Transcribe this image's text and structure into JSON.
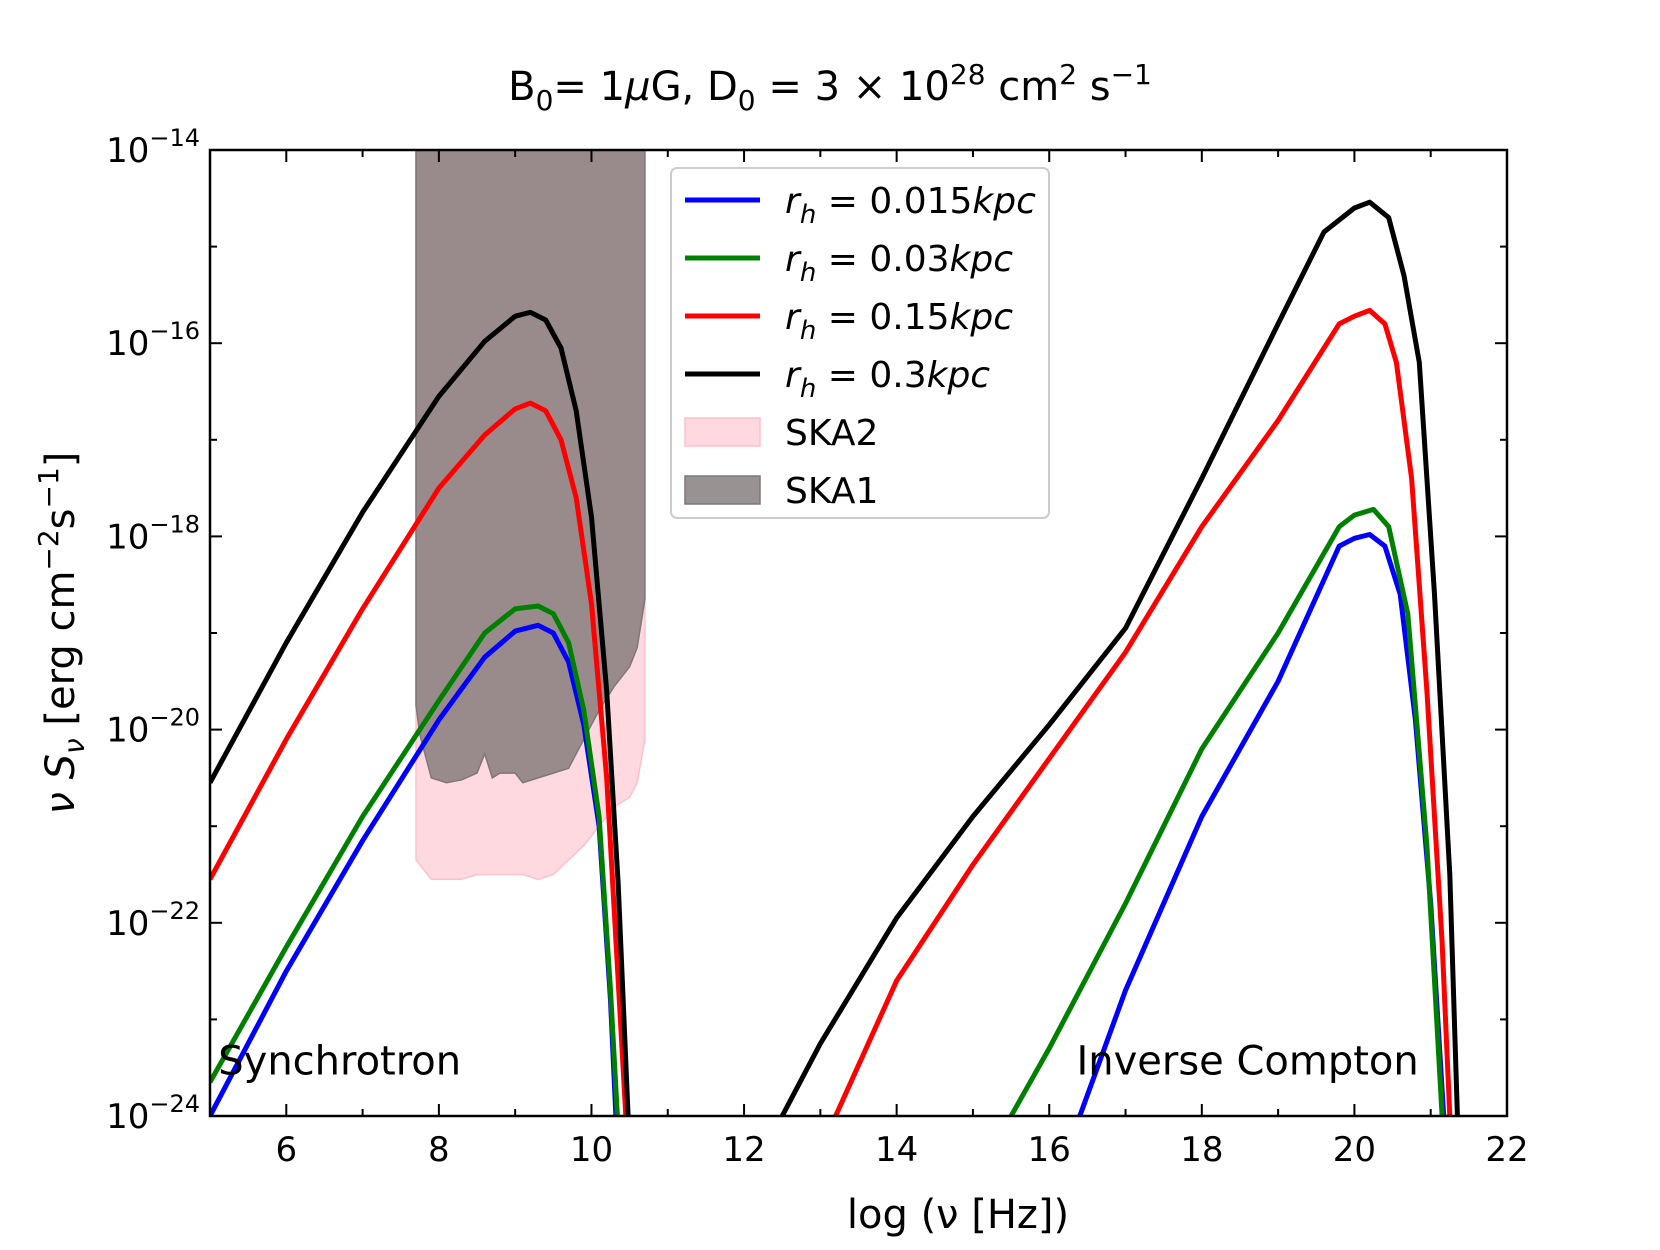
{
  "chart_data": {
    "type": "line",
    "title": "B₀= 1μG, D₀ = 3 × 10²⁸ cm² s⁻¹",
    "title_parts": {
      "b": "B",
      "b_sub": "0",
      "b_val": "= 1",
      "mu": "μ",
      "g": "G, D",
      "d_sub": "0",
      "d_val": " = 3 × 10",
      "exp": "28",
      "cm": " cm",
      "cm_exp": "2",
      "s": " s",
      "s_exp": "−1"
    },
    "xlabel": "log (ν [Hz])",
    "ylabel": "ν Sν [erg cm⁻²s⁻¹]",
    "ylabel_parts": {
      "nu": "ν S",
      "sub": "ν",
      "unit": " [erg cm",
      "exp1": "−2",
      "s": "s",
      "exp2": "−1",
      "close": "]"
    },
    "xlim": [
      5,
      22
    ],
    "ylim": [
      -24,
      -14
    ],
    "y_scale": "log",
    "x_ticks": [
      6,
      8,
      10,
      12,
      14,
      16,
      18,
      20,
      22
    ],
    "y_ticks": [
      {
        "exp": -14,
        "base": "10",
        "label": "−14"
      },
      {
        "exp": -16,
        "base": "10",
        "label": "−16"
      },
      {
        "exp": -18,
        "base": "10",
        "label": "−18"
      },
      {
        "exp": -20,
        "base": "10",
        "label": "−20"
      },
      {
        "exp": -22,
        "base": "10",
        "label": "−22"
      },
      {
        "exp": -24,
        "base": "10",
        "label": "−24"
      }
    ],
    "annotations": [
      {
        "text": "Synchrotron",
        "x": 6.7,
        "y": -23.57
      },
      {
        "text": "Inverse Compton",
        "x": 18.6,
        "y": -23.57
      }
    ],
    "legend_position": "top-center",
    "series": [
      {
        "name": "r_h = 0.015kpc",
        "label_parts": {
          "r": "r",
          "h": "h",
          "rest": " = 0.015",
          "unit": "kpc"
        },
        "color": "#0000ff",
        "segments": [
          [
            [
              5.0,
              -24.0
            ],
            [
              6.0,
              -22.5
            ],
            [
              7.0,
              -21.15
            ],
            [
              8.0,
              -19.9
            ],
            [
              8.6,
              -19.25
            ],
            [
              9.0,
              -18.98
            ],
            [
              9.3,
              -18.92
            ],
            [
              9.5,
              -19.0
            ],
            [
              9.7,
              -19.3
            ],
            [
              9.9,
              -19.95
            ],
            [
              10.1,
              -21.0
            ],
            [
              10.25,
              -22.8
            ],
            [
              10.32,
              -24.0
            ]
          ],
          [
            [
              16.4,
              -24.0
            ],
            [
              17.0,
              -22.7
            ],
            [
              18.0,
              -20.9
            ],
            [
              19.0,
              -19.5
            ],
            [
              19.8,
              -18.1
            ],
            [
              20.0,
              -18.02
            ],
            [
              20.2,
              -17.98
            ],
            [
              20.4,
              -18.1
            ],
            [
              20.6,
              -18.6
            ],
            [
              20.8,
              -19.9
            ],
            [
              21.0,
              -21.8
            ],
            [
              21.17,
              -24.0
            ]
          ]
        ]
      },
      {
        "name": "r_h = 0.03kpc",
        "label_parts": {
          "r": "r",
          "h": "h",
          "rest": " = 0.03",
          "unit": "kpc"
        },
        "color": "#008000",
        "segments": [
          [
            [
              5.0,
              -23.65
            ],
            [
              6.0,
              -22.25
            ],
            [
              7.0,
              -20.9
            ],
            [
              8.0,
              -19.7
            ],
            [
              8.6,
              -19.0
            ],
            [
              9.0,
              -18.75
            ],
            [
              9.3,
              -18.72
            ],
            [
              9.5,
              -18.8
            ],
            [
              9.7,
              -19.1
            ],
            [
              9.9,
              -19.8
            ],
            [
              10.1,
              -20.9
            ],
            [
              10.25,
              -22.7
            ],
            [
              10.34,
              -24.0
            ]
          ],
          [
            [
              15.5,
              -24.0
            ],
            [
              16.0,
              -23.3
            ],
            [
              17.0,
              -21.8
            ],
            [
              18.0,
              -20.2
            ],
            [
              19.0,
              -19.0
            ],
            [
              19.8,
              -17.9
            ],
            [
              20.0,
              -17.78
            ],
            [
              20.25,
              -17.72
            ],
            [
              20.45,
              -17.9
            ],
            [
              20.7,
              -18.8
            ],
            [
              20.95,
              -21.2
            ],
            [
              21.15,
              -24.0
            ]
          ]
        ]
      },
      {
        "name": "r_h = 0.15kpc",
        "label_parts": {
          "r": "r",
          "h": "h",
          "rest": " = 0.15",
          "unit": "kpc"
        },
        "color": "#ff0000",
        "segments": [
          [
            [
              5.0,
              -21.55
            ],
            [
              6.0,
              -20.1
            ],
            [
              7.0,
              -18.75
            ],
            [
              8.0,
              -17.5
            ],
            [
              8.6,
              -16.95
            ],
            [
              9.0,
              -16.68
            ],
            [
              9.2,
              -16.62
            ],
            [
              9.4,
              -16.7
            ],
            [
              9.6,
              -17.0
            ],
            [
              9.8,
              -17.6
            ],
            [
              10.0,
              -18.7
            ],
            [
              10.2,
              -20.5
            ],
            [
              10.35,
              -22.6
            ],
            [
              10.45,
              -24.0
            ]
          ],
          [
            [
              13.2,
              -24.0
            ],
            [
              14.0,
              -22.6
            ],
            [
              15.0,
              -21.4
            ],
            [
              16.0,
              -20.3
            ],
            [
              17.0,
              -19.2
            ],
            [
              18.0,
              -17.9
            ],
            [
              19.0,
              -16.8
            ],
            [
              19.8,
              -15.8
            ],
            [
              20.0,
              -15.72
            ],
            [
              20.2,
              -15.66
            ],
            [
              20.4,
              -15.8
            ],
            [
              20.55,
              -16.2
            ],
            [
              20.75,
              -17.4
            ],
            [
              20.95,
              -19.6
            ],
            [
              21.15,
              -22.2
            ],
            [
              21.25,
              -24.0
            ]
          ]
        ]
      },
      {
        "name": "r_h = 0.3kpc",
        "label_parts": {
          "r": "r",
          "h": "h",
          "rest": " = 0.3",
          "unit": "kpc"
        },
        "color": "#000000",
        "segments": [
          [
            [
              5.0,
              -20.55
            ],
            [
              6.0,
              -19.1
            ],
            [
              7.0,
              -17.75
            ],
            [
              8.0,
              -16.55
            ],
            [
              8.6,
              -15.98
            ],
            [
              9.0,
              -15.72
            ],
            [
              9.2,
              -15.68
            ],
            [
              9.4,
              -15.76
            ],
            [
              9.6,
              -16.05
            ],
            [
              9.8,
              -16.7
            ],
            [
              10.0,
              -17.8
            ],
            [
              10.2,
              -19.6
            ],
            [
              10.35,
              -21.6
            ],
            [
              10.48,
              -24.0
            ]
          ],
          [
            [
              12.5,
              -24.0
            ],
            [
              13.0,
              -23.25
            ],
            [
              14.0,
              -21.95
            ],
            [
              15.0,
              -20.9
            ],
            [
              16.0,
              -19.95
            ],
            [
              17.0,
              -18.95
            ],
            [
              18.0,
              -17.4
            ],
            [
              19.0,
              -15.8
            ],
            [
              19.6,
              -14.85
            ],
            [
              20.0,
              -14.6
            ],
            [
              20.2,
              -14.54
            ],
            [
              20.45,
              -14.7
            ],
            [
              20.65,
              -15.3
            ],
            [
              20.85,
              -16.2
            ],
            [
              21.05,
              -18.6
            ],
            [
              21.25,
              -21.5
            ],
            [
              21.35,
              -24.0
            ]
          ]
        ]
      }
    ],
    "bands": [
      {
        "name": "SKA2",
        "color": "#ffc0cb",
        "alpha": 0.6,
        "x": [
          7.7,
          7.9,
          8.3,
          8.5,
          8.7,
          8.9,
          9.1,
          9.3,
          9.5,
          9.7,
          9.9,
          10.1,
          10.3,
          10.5,
          10.6,
          10.7
        ],
        "lower": [
          -21.35,
          -21.55,
          -21.55,
          -21.5,
          -21.5,
          -21.5,
          -21.5,
          -21.55,
          -21.5,
          -21.35,
          -21.2,
          -21.0,
          -20.8,
          -20.7,
          -20.55,
          -20.1
        ],
        "upper": [
          -14,
          -14,
          -14,
          -14,
          -14,
          -14,
          -14,
          -14,
          -14,
          -14,
          -14,
          -14,
          -14,
          -14,
          -14,
          -14
        ]
      },
      {
        "name": "SKA1",
        "color": "#7f7777",
        "alpha": 0.8,
        "x": [
          7.7,
          7.75,
          7.9,
          8.1,
          8.3,
          8.5,
          8.6,
          8.7,
          8.8,
          9.0,
          9.1,
          9.3,
          9.5,
          9.7,
          9.9,
          10.1,
          10.3,
          10.5,
          10.6,
          10.7
        ],
        "lower": [
          -19.75,
          -20.05,
          -20.5,
          -20.55,
          -20.52,
          -20.45,
          -20.25,
          -20.5,
          -20.45,
          -20.45,
          -20.55,
          -20.5,
          -20.45,
          -20.4,
          -20.1,
          -19.8,
          -19.55,
          -19.35,
          -19.15,
          -18.65
        ],
        "upper": [
          -14,
          -14,
          -14,
          -14,
          -14,
          -14,
          -14,
          -14,
          -14,
          -14,
          -14,
          -14,
          -14,
          -14,
          -14,
          -14,
          -14,
          -14,
          -14,
          -14
        ]
      }
    ]
  }
}
